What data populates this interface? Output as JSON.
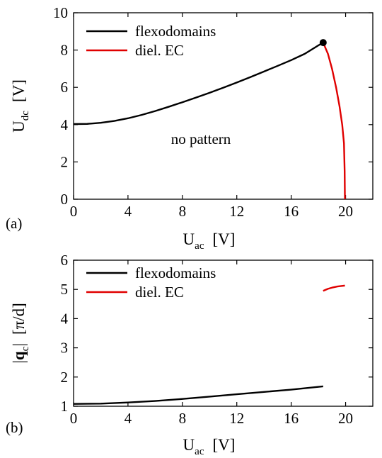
{
  "chart_data": [
    {
      "type": "line",
      "panel_label": "(a)",
      "xlabel": {
        "main": "U",
        "sub": "ac",
        "unit": "[V]"
      },
      "ylabel": {
        "main": "U",
        "sub": "dc",
        "unit": "[V]"
      },
      "xlim": [
        0,
        22
      ],
      "ylim": [
        0,
        10
      ],
      "xticks": [
        0,
        4,
        8,
        12,
        16,
        20
      ],
      "yticks": [
        0,
        2,
        4,
        6,
        8,
        10
      ],
      "grid": false,
      "legend_position": "top-left",
      "annotation": "no pattern",
      "marker_point": {
        "x": 18.35,
        "y": 8.4
      },
      "series": [
        {
          "name": "flexodomains",
          "color": "#000000",
          "x": [
            0,
            1,
            2,
            3,
            4,
            5,
            6,
            7,
            8,
            9,
            10,
            11,
            12,
            13,
            14,
            15,
            16,
            17,
            18,
            18.35
          ],
          "y": [
            4.03,
            4.04,
            4.1,
            4.2,
            4.34,
            4.52,
            4.73,
            4.96,
            5.2,
            5.45,
            5.71,
            5.98,
            6.26,
            6.55,
            6.85,
            7.15,
            7.46,
            7.8,
            8.25,
            8.4
          ]
        },
        {
          "name": "diel. EC",
          "color": "#e00000",
          "x": [
            18.35,
            18.7,
            19.0,
            19.3,
            19.55,
            19.75,
            19.88,
            19.93,
            19.95
          ],
          "y": [
            8.4,
            7.8,
            7.0,
            6.0,
            5.0,
            4.0,
            3.0,
            1.5,
            0
          ]
        }
      ]
    },
    {
      "type": "line",
      "panel_label": "(b)",
      "xlabel": {
        "main": "U",
        "sub": "ac",
        "unit": "[V]"
      },
      "ylabel": {
        "pre": "|",
        "main": "q",
        "sub": "c",
        "post": "|",
        "unit": "[π/d]"
      },
      "xlim": [
        0,
        22
      ],
      "ylim": [
        1,
        6
      ],
      "xticks": [
        0,
        4,
        8,
        12,
        16,
        20
      ],
      "yticks": [
        1,
        2,
        3,
        4,
        5,
        6
      ],
      "grid": false,
      "legend_position": "top-left",
      "series": [
        {
          "name": "flexodomains",
          "color": "#000000",
          "x": [
            0,
            2,
            4,
            6,
            8,
            10,
            12,
            14,
            16,
            18.35
          ],
          "y": [
            1.08,
            1.09,
            1.13,
            1.18,
            1.25,
            1.33,
            1.41,
            1.49,
            1.57,
            1.68
          ]
        },
        {
          "name": "diel. EC",
          "color": "#e00000",
          "x": [
            18.35,
            18.7,
            19.0,
            19.4,
            19.95
          ],
          "y": [
            4.95,
            5.02,
            5.06,
            5.1,
            5.13
          ]
        }
      ]
    }
  ]
}
